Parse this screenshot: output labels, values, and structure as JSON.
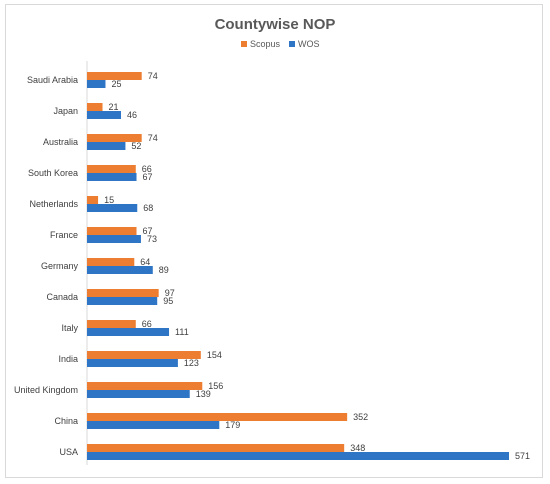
{
  "chart_data": {
    "type": "bar",
    "orientation": "horizontal",
    "title": "Countywise NOP",
    "legend_position": "top",
    "grid": false,
    "categories": [
      "Saudi Arabia",
      "Japan",
      "Australia",
      "South Korea",
      "Netherlands",
      "France",
      "Germany",
      "Canada",
      "Italy",
      "India",
      "United Kingdom",
      "China",
      "USA"
    ],
    "series": [
      {
        "name": "Scopus",
        "color": "#ED7D31",
        "values": [
          74,
          21,
          74,
          66,
          15,
          67,
          64,
          97,
          66,
          154,
          156,
          352,
          348
        ]
      },
      {
        "name": "WOS",
        "color": "#2E75C6",
        "values": [
          25,
          46,
          52,
          67,
          68,
          73,
          89,
          95,
          111,
          123,
          139,
          179,
          571
        ]
      }
    ],
    "xlim": [
      0,
      571
    ]
  }
}
